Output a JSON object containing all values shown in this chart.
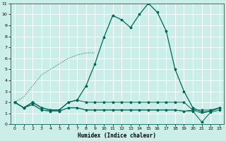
{
  "xlabel": "Humidex (Indice chaleur)",
  "background_color": "#cceee8",
  "grid_color": "#ffffff",
  "line_color": "#006655",
  "xlim": [
    -0.5,
    23.5
  ],
  "ylim": [
    0,
    11
  ],
  "xticks": [
    0,
    1,
    2,
    3,
    4,
    5,
    6,
    7,
    8,
    9,
    10,
    11,
    12,
    13,
    14,
    15,
    16,
    17,
    18,
    19,
    20,
    21,
    22,
    23
  ],
  "yticks": [
    0,
    1,
    2,
    3,
    4,
    5,
    6,
    7,
    8,
    9,
    10,
    11
  ],
  "line1_x": [
    0,
    1,
    2,
    3,
    4,
    5,
    6,
    7,
    8,
    9,
    10,
    11,
    12,
    13,
    14,
    15,
    16,
    17,
    18,
    19,
    20,
    21,
    22,
    23
  ],
  "line1_y": [
    2.0,
    1.5,
    2.0,
    1.5,
    1.3,
    1.3,
    2.0,
    2.2,
    3.5,
    5.5,
    7.9,
    9.9,
    9.5,
    8.8,
    10.0,
    11.0,
    10.2,
    8.5,
    5.0,
    3.0,
    1.5,
    1.1,
    1.2,
    1.5
  ],
  "line2_x": [
    0,
    1,
    2,
    3,
    4,
    5,
    6,
    7,
    8,
    9,
    10,
    11,
    12,
    13,
    14,
    15,
    16,
    17,
    18,
    19,
    20,
    21,
    22,
    23
  ],
  "line2_y": [
    2.0,
    1.5,
    2.0,
    1.5,
    1.3,
    1.3,
    2.0,
    2.2,
    2.0,
    2.0,
    2.0,
    2.0,
    2.0,
    2.0,
    2.0,
    2.0,
    2.0,
    2.0,
    2.0,
    2.0,
    1.3,
    1.3,
    1.3,
    1.5
  ],
  "line3_x": [
    0,
    1,
    2,
    3,
    4,
    5,
    6,
    7,
    8,
    9
  ],
  "line3_y": [
    2.0,
    2.5,
    3.5,
    4.5,
    5.0,
    5.5,
    6.0,
    6.3,
    6.5,
    6.5
  ],
  "line4_x": [
    0,
    1,
    2,
    3,
    4,
    5,
    6,
    7,
    8,
    9,
    10,
    11,
    12,
    13,
    14,
    15,
    16,
    17,
    18,
    19,
    20,
    21,
    22,
    23
  ],
  "line4_y": [
    2.0,
    1.5,
    1.8,
    1.3,
    1.2,
    1.2,
    1.5,
    1.5,
    1.3,
    1.3,
    1.3,
    1.3,
    1.3,
    1.3,
    1.3,
    1.3,
    1.3,
    1.3,
    1.3,
    1.2,
    1.2,
    0.2,
    1.1,
    1.3
  ],
  "line5_x": [
    0,
    1,
    2,
    3,
    4,
    5,
    6,
    7,
    8,
    9,
    10,
    11,
    12,
    13,
    14,
    15,
    16,
    17,
    18,
    19,
    20,
    21,
    22,
    23
  ],
  "line5_y": [
    2.0,
    1.5,
    1.8,
    1.3,
    1.2,
    1.2,
    1.5,
    1.5,
    1.3,
    1.3,
    1.3,
    1.3,
    1.3,
    1.3,
    1.3,
    1.3,
    1.3,
    1.3,
    1.3,
    1.2,
    1.3,
    1.0,
    1.2,
    1.5
  ]
}
